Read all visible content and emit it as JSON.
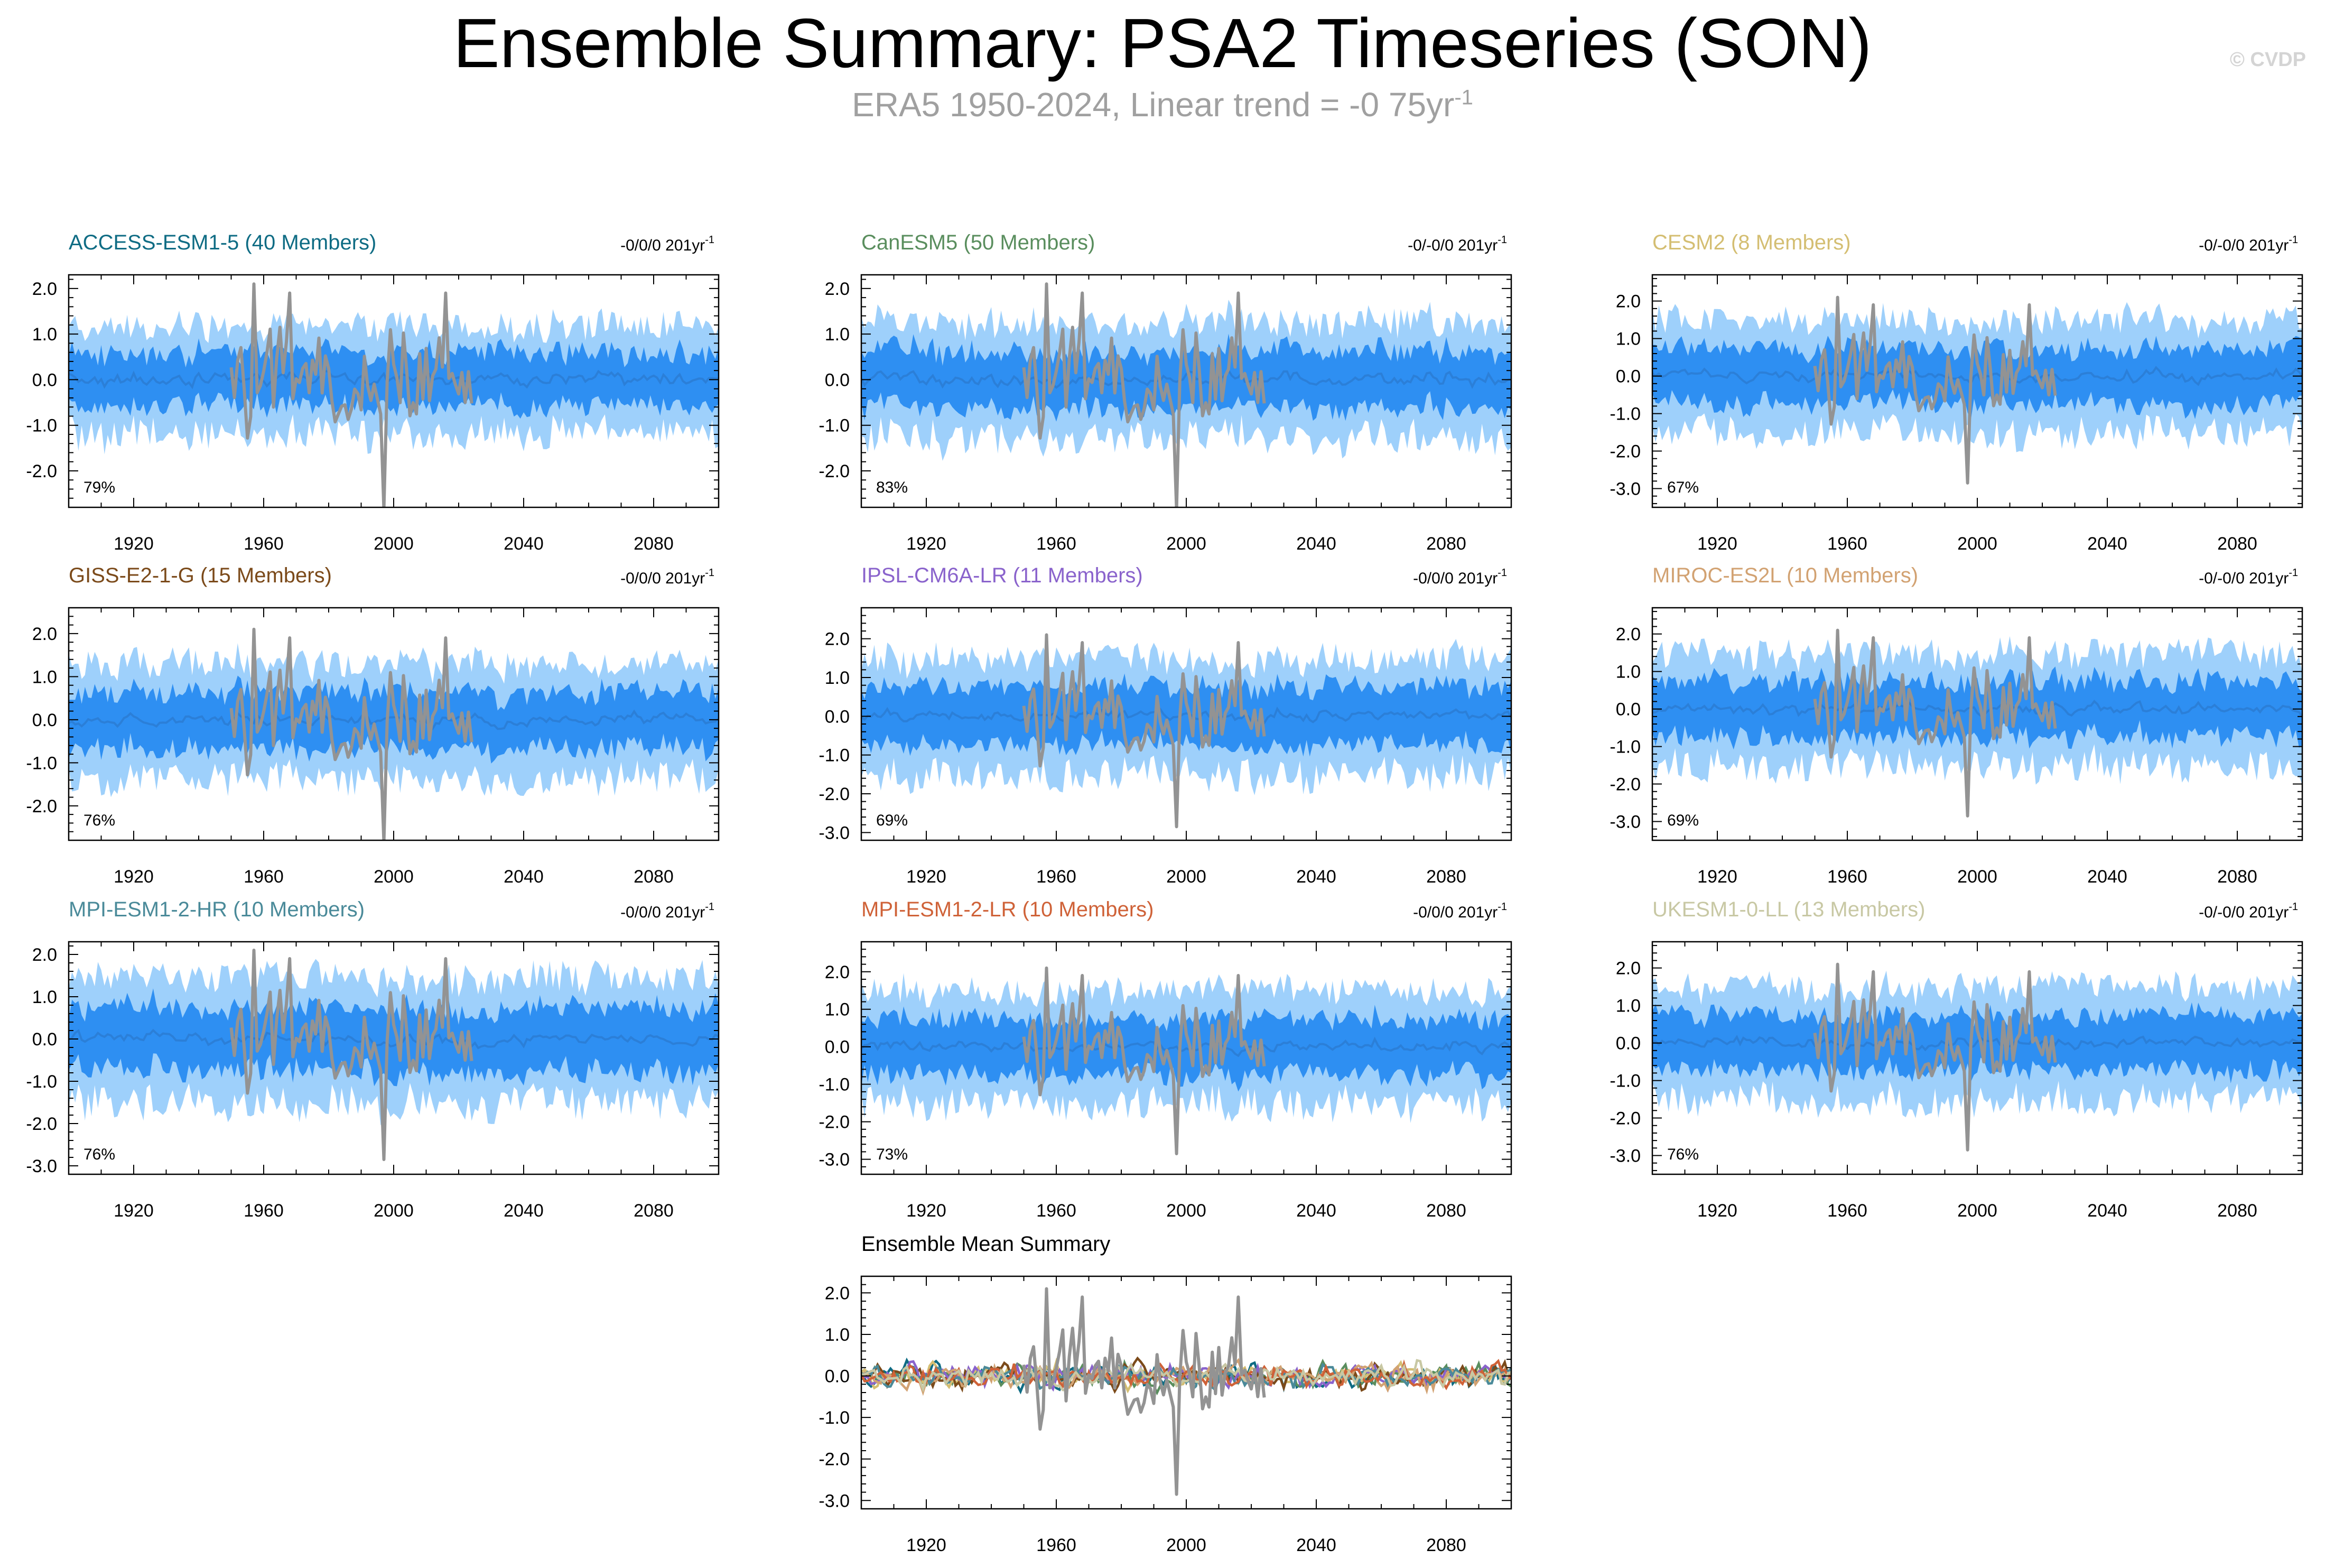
{
  "title": "Ensemble Summary: PSA2 Timeseries (SON)",
  "subtitle": {
    "text": "ERA5 1950-2024, Linear trend = -0 75yr",
    "sup": "-1"
  },
  "watermark": "© CVDP",
  "chart_data": {
    "type": "line",
    "x_range": [
      1900,
      2100
    ],
    "x_ticks": [
      1920,
      1960,
      2000,
      2040,
      2080
    ],
    "observations": {
      "name": "ERA5",
      "years": [
        1950,
        2024
      ],
      "color": "#939393",
      "key_points": [
        {
          "year": 1957,
          "value": 2.1
        },
        {
          "year": 1968,
          "value": 1.9
        },
        {
          "year": 1997,
          "value": -2.85
        },
        {
          "year": 2016,
          "value": 1.9
        }
      ]
    },
    "colors": {
      "band_outer": "#9ed0fb",
      "band_inner": "#2e8ff2",
      "ens_mean": "#2b7fd8",
      "obs": "#939393"
    },
    "panels": [
      {
        "name": "ACCESS-ESM1-5 (40 Members)",
        "color": "#0f6c84",
        "trend": "-0/0/0 201yr",
        "trend_sup": "-1",
        "percent": "79%",
        "ylim": [
          -2.8,
          2.3
        ],
        "yticks": [
          -2,
          -1,
          0,
          1,
          2
        ],
        "spread": 0.75
      },
      {
        "name": "CanESM5 (50 Members)",
        "color": "#5a8e5e",
        "trend": "-0/-0/0 201yr",
        "trend_sup": "-1",
        "percent": "83%",
        "ylim": [
          -2.8,
          2.3
        ],
        "yticks": [
          -2,
          -1,
          0,
          1,
          2
        ],
        "spread": 0.8
      },
      {
        "name": "CESM2 (8 Members)",
        "color": "#d4be72",
        "trend": "-0/-0/0 201yr",
        "trend_sup": "-1",
        "percent": "67%",
        "ylim": [
          -3.5,
          2.7
        ],
        "yticks": [
          -3,
          -2,
          -1,
          0,
          1,
          2
        ],
        "spread": 0.95
      },
      {
        "name": "GISS-E2-1-G (15 Members)",
        "color": "#7b4a1a",
        "trend": "-0/0/0 201yr",
        "trend_sup": "-1",
        "percent": "76%",
        "ylim": [
          -2.8,
          2.6
        ],
        "yticks": [
          -2,
          -1,
          0,
          1,
          2
        ],
        "spread": 0.85
      },
      {
        "name": "IPSL-CM6A-LR (11 Members)",
        "color": "#8a63cc",
        "trend": "-0/0/0 201yr",
        "trend_sup": "-1",
        "percent": "69%",
        "ylim": [
          -3.2,
          2.8
        ],
        "yticks": [
          -3,
          -2,
          -1,
          0,
          1,
          2
        ],
        "spread": 0.95
      },
      {
        "name": "MIROC-ES2L (10 Members)",
        "color": "#d2a272",
        "trend": "-0/-0/0 201yr",
        "trend_sup": "-1",
        "percent": "69%",
        "ylim": [
          -3.5,
          2.7
        ],
        "yticks": [
          -3,
          -2,
          -1,
          0,
          1,
          2
        ],
        "spread": 0.95
      },
      {
        "name": "MPI-ESM1-2-HR (10 Members)",
        "color": "#4a8a99",
        "trend": "-0/0/0 201yr",
        "trend_sup": "-1",
        "percent": "76%",
        "ylim": [
          -3.2,
          2.3
        ],
        "yticks": [
          -3,
          -2,
          -1,
          0,
          1,
          2
        ],
        "spread": 0.95
      },
      {
        "name": "MPI-ESM1-2-LR (10 Members)",
        "color": "#cf6238",
        "trend": "-0/0/0 201yr",
        "trend_sup": "-1",
        "percent": "73%",
        "ylim": [
          -3.4,
          2.8
        ],
        "yticks": [
          -3,
          -2,
          -1,
          0,
          1,
          2
        ],
        "spread": 0.95
      },
      {
        "name": "UKESM1-0-LL (13 Members)",
        "color": "#c8c8a4",
        "trend": "-0/-0/0 201yr",
        "trend_sup": "-1",
        "percent": "76%",
        "ylim": [
          -3.5,
          2.7
        ],
        "yticks": [
          -3,
          -2,
          -1,
          0,
          1,
          2
        ],
        "spread": 0.95
      }
    ],
    "summary": {
      "name": "Ensemble Mean Summary",
      "color": "#000000",
      "ylim": [
        -3.2,
        2.4
      ],
      "yticks": [
        -3,
        -2,
        -1,
        0,
        1,
        2
      ],
      "series_colors": [
        "#0f6c84",
        "#5a8e5e",
        "#d4be72",
        "#7b4a1a",
        "#8a63cc",
        "#d2a272",
        "#4a8a99",
        "#cf6238",
        "#c8c8a4"
      ]
    }
  }
}
